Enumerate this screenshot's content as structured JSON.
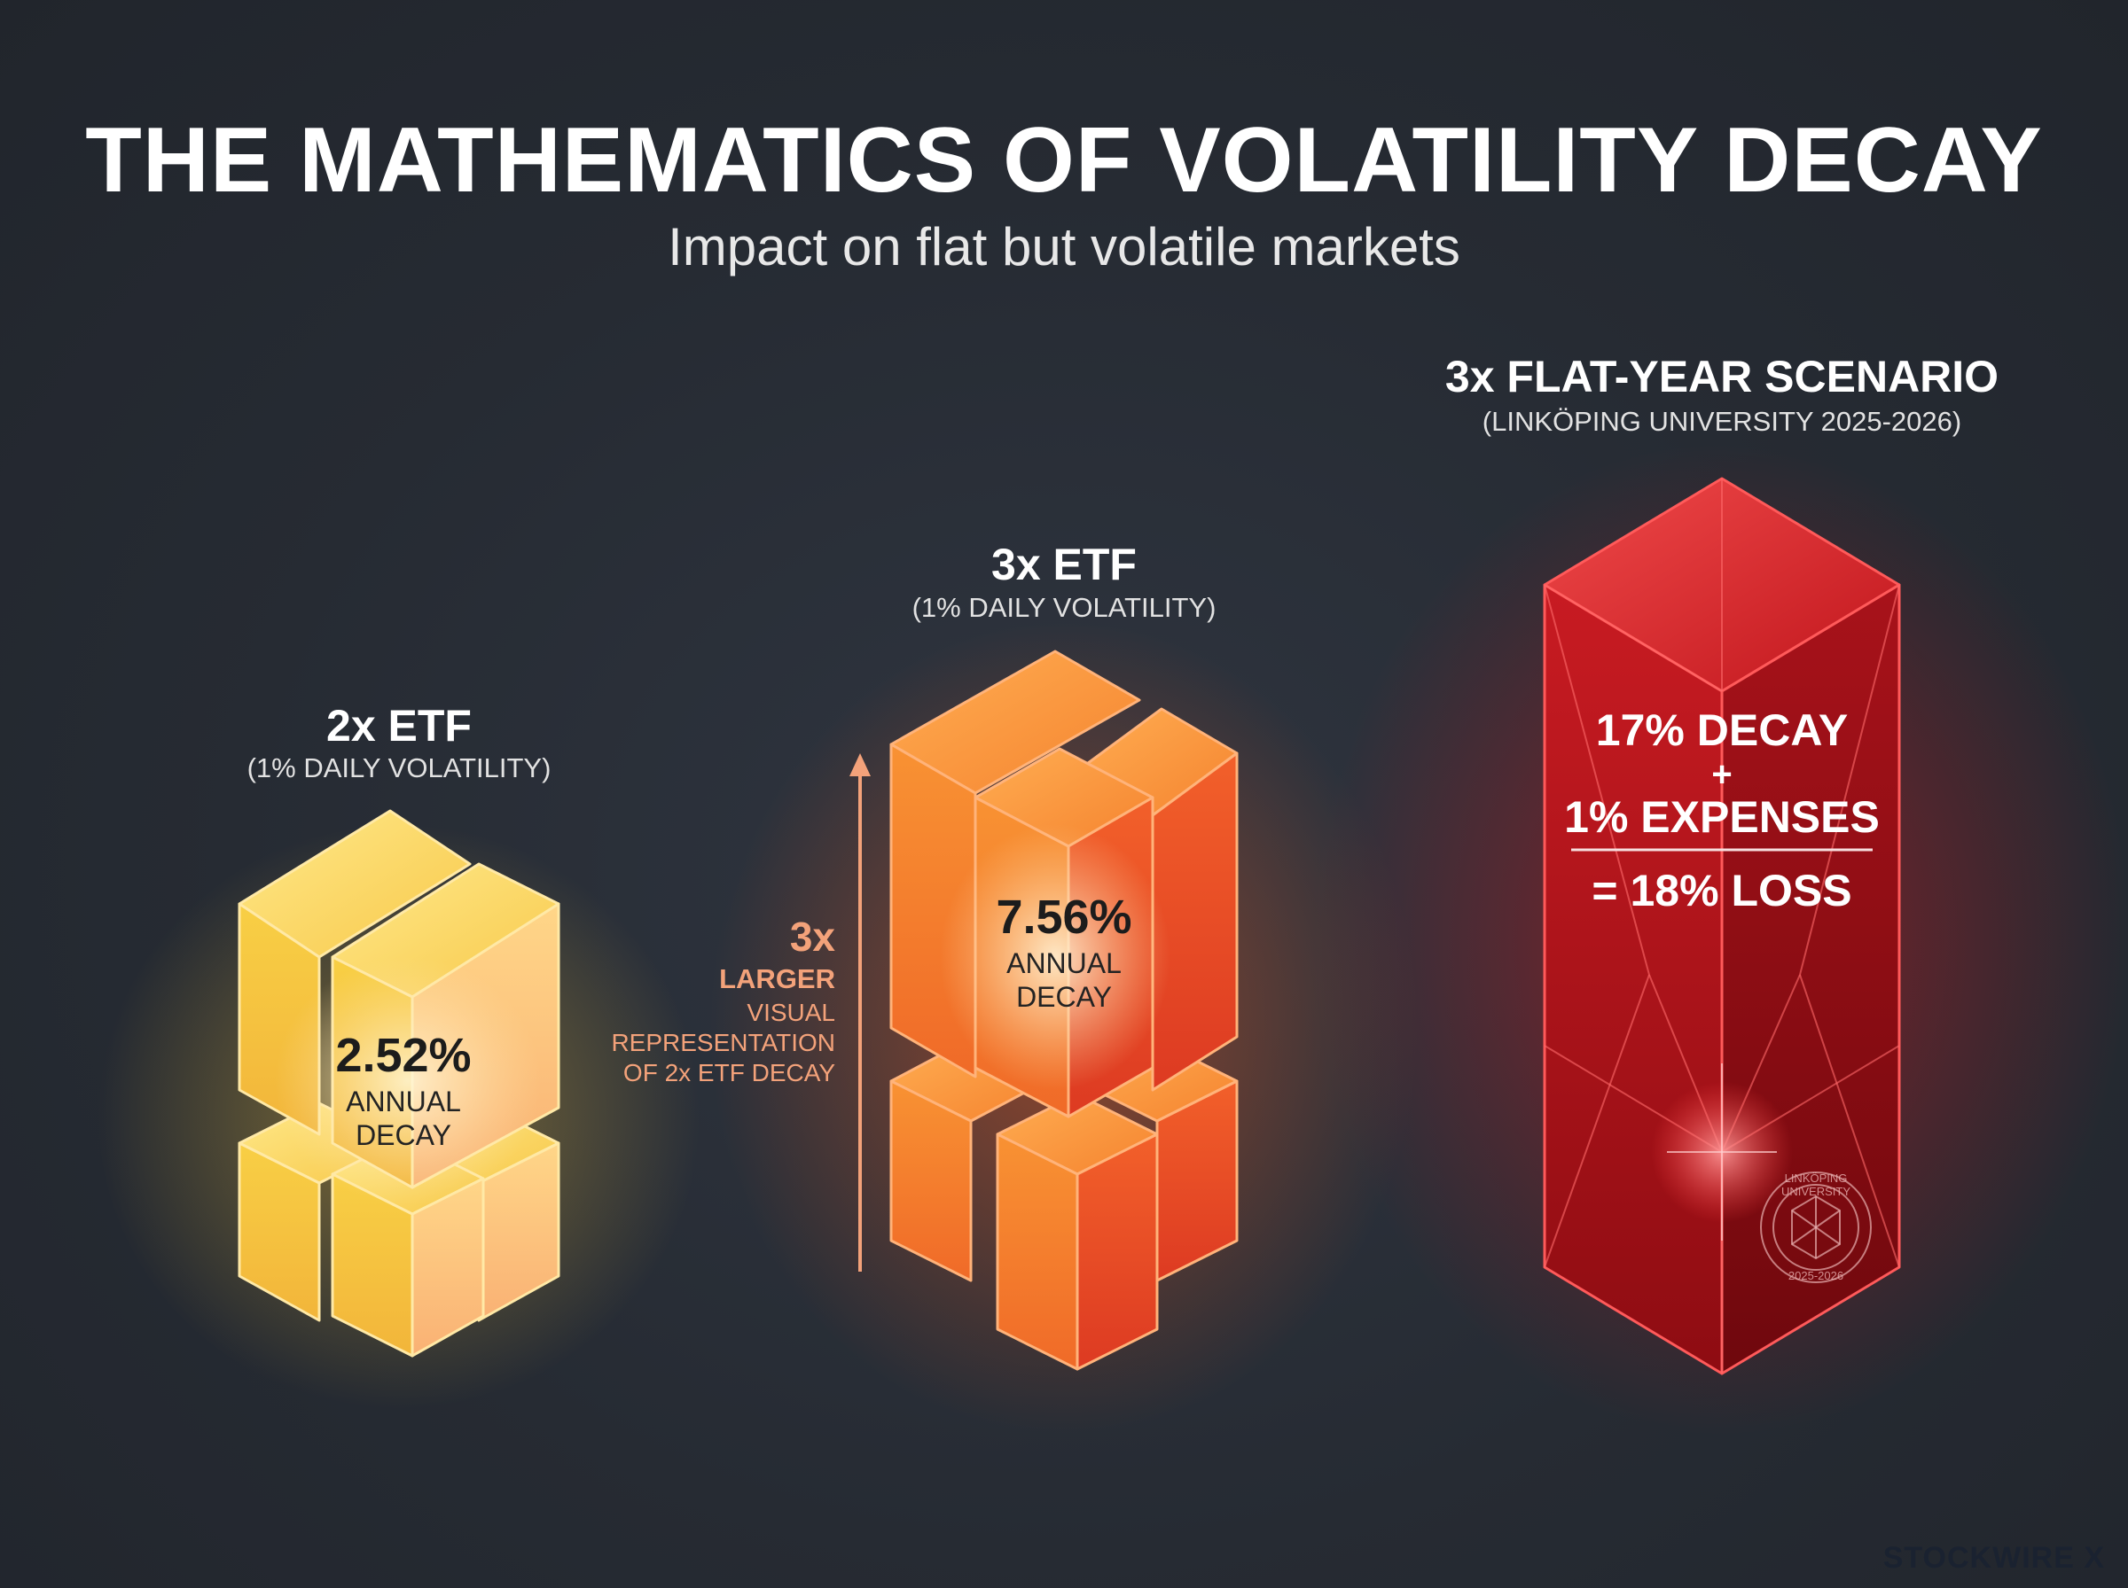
{
  "title": "THE MATHEMATICS OF VOLATILITY DECAY",
  "subtitle": "Impact on flat but volatile markets",
  "blocks": [
    {
      "heading": "2x ETF",
      "subheading": "(1% DAILY VOLATILITY)",
      "value": "2.52%",
      "value_number": 2.52,
      "label_line1": "ANNUAL",
      "label_line2": "DECAY",
      "color": "#f7c646"
    },
    {
      "heading": "3x ETF",
      "subheading": "(1% DAILY VOLATILITY)",
      "value": "7.56%",
      "value_number": 7.56,
      "label_line1": "ANNUAL",
      "label_line2": "DECAY",
      "color": "#f26a2c"
    },
    {
      "heading": "3x FLAT-YEAR SCENARIO",
      "subheading": "(LINKÖPING UNIVERSITY 2025-2026)",
      "color": "#c4161c"
    }
  ],
  "comparison": {
    "multiplier": "3x",
    "line1": "LARGER",
    "line2": "VISUAL",
    "line3": "REPRESENTATION",
    "line4": "OF 2x ETF DECAY",
    "color": "#f3a27a"
  },
  "scenario": {
    "line1": "17% DECAY",
    "plus": "+",
    "line2": "1% EXPENSES",
    "result": "= 18% LOSS"
  },
  "seal": {
    "text_top": "LINKÖPING UNIVERSITY",
    "text_bottom": "2025-2026"
  },
  "brand": "STOCKWIRE X"
}
